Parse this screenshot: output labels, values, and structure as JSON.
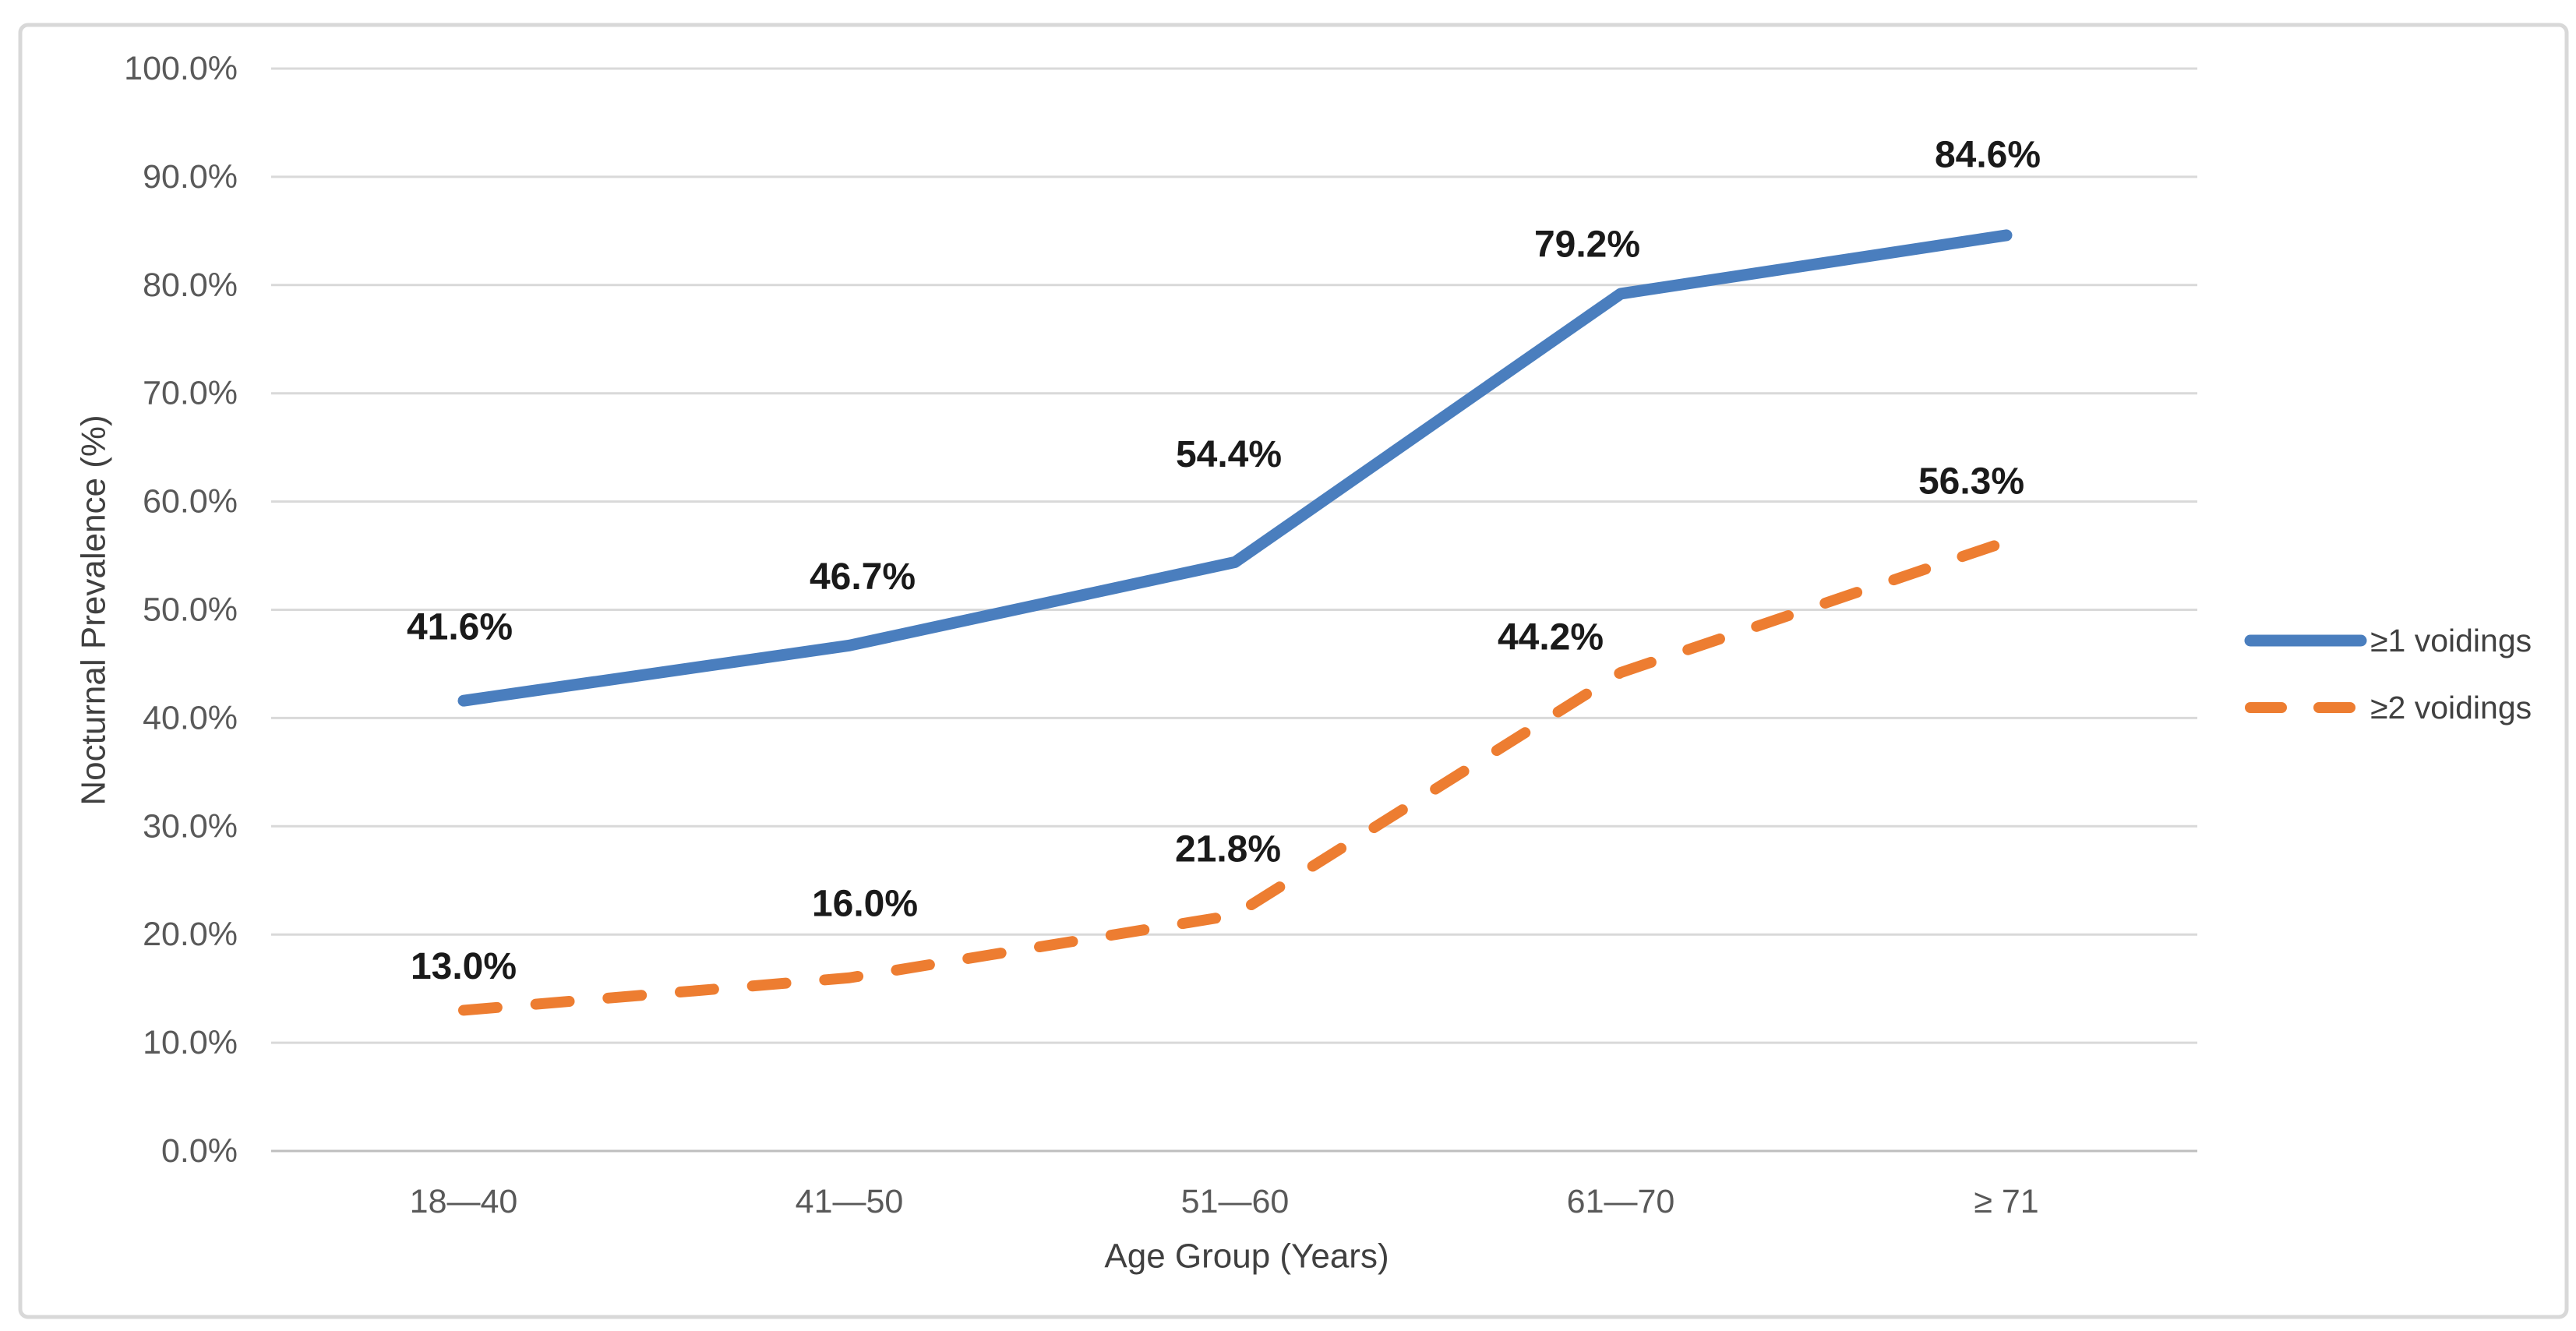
{
  "chart_data": {
    "type": "line",
    "title": "",
    "xlabel": "Age Group (Years)",
    "ylabel": "Nocturnal Prevalence (%)",
    "categories": [
      "18—40",
      "41—50",
      "51—60",
      "61—70",
      "≥ 71"
    ],
    "series": [
      {
        "name": "≥1 voidings",
        "values": [
          41.6,
          46.7,
          54.4,
          79.2,
          84.6
        ],
        "data_labels": [
          "41.6%",
          "46.7%",
          "54.4%",
          "79.2%",
          "84.6%"
        ],
        "color": "#4A7EBE",
        "line_style": "solid"
      },
      {
        "name": "≥2 voidings",
        "values": [
          13.0,
          16.0,
          21.8,
          44.2,
          56.3
        ],
        "data_labels": [
          "13.0%",
          "16.0%",
          "21.8%",
          "44.2%",
          "56.3%"
        ],
        "color": "#ED7D31",
        "line_style": "dashed"
      }
    ],
    "ylim": [
      0,
      100
    ],
    "ytick_step": 10,
    "ytick_labels": [
      "0.0%",
      "10.0%",
      "20.0%",
      "30.0%",
      "40.0%",
      "50.0%",
      "60.0%",
      "70.0%",
      "80.0%",
      "90.0%",
      "100.0%"
    ],
    "grid": true,
    "legend_position": "right-middle"
  },
  "colors": {
    "series1": "#4A7EBE",
    "series2": "#ED7D31",
    "gridline": "#D9D9D9",
    "axis_line": "#BFBFBF",
    "tick_text": "#595959",
    "title_text": "#404040",
    "data_label_text": "#1A1A1A",
    "border": "#D8D8D8",
    "background": "#FFFFFF"
  }
}
